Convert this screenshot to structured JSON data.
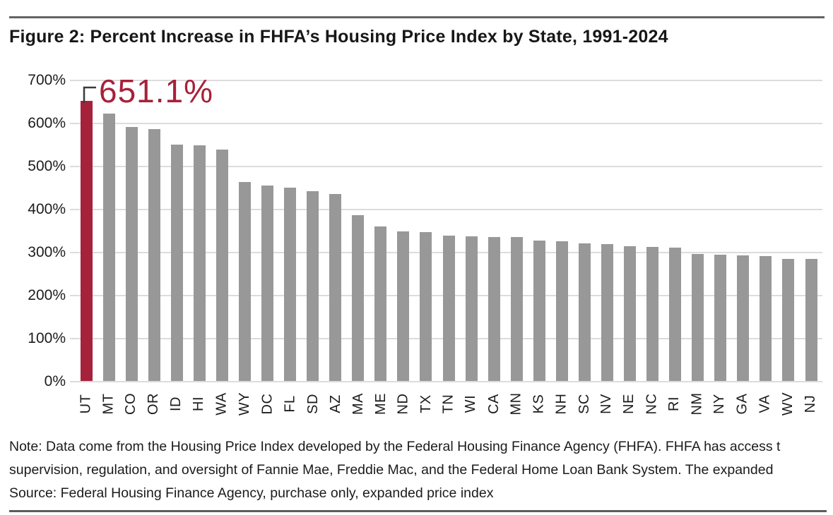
{
  "page": {
    "title": "Figure 2: Percent Increase in FHFA’s Housing Price Index by State, 1991-2024"
  },
  "chart_data": {
    "type": "bar",
    "title": "Figure 2: Percent Increase in FHFA’s Housing Price Index by State, 1991-2024",
    "categories": [
      "UT",
      "MT",
      "CO",
      "OR",
      "ID",
      "HI",
      "WA",
      "WY",
      "DC",
      "FL",
      "SD",
      "AZ",
      "MA",
      "ME",
      "ND",
      "TX",
      "TN",
      "WI",
      "CA",
      "MN",
      "KS",
      "NH",
      "SC",
      "NV",
      "NE",
      "NC",
      "RI",
      "NM",
      "NY",
      "GA",
      "VA",
      "WV",
      "NJ"
    ],
    "values": [
      651.1,
      621,
      590,
      585,
      550,
      547,
      537,
      462,
      454,
      449,
      441,
      434,
      385,
      359,
      347,
      346,
      338,
      336,
      335,
      334,
      327,
      325,
      320,
      318,
      314,
      312,
      310,
      295,
      294,
      292,
      290,
      284,
      283
    ],
    "xlabel": "",
    "ylabel": "",
    "ylim": [
      0,
      700
    ],
    "yticks": [
      "700%",
      "600%",
      "500%",
      "400%",
      "300%",
      "200%",
      "100%",
      "0%"
    ],
    "grid": true,
    "gridline_color": "#DCDCDC",
    "bar_color": "#989898",
    "highlight": {
      "category": "UT",
      "value_label": "651.1%",
      "color": "#A6213A"
    },
    "legend": "none"
  },
  "notes": {
    "line1": "Note: Data come from the Housing Price Index developed by the Federal Housing Finance Agency (FHFA). FHFA has access t",
    "line2": "supervision, regulation, and oversight of Fannie Mae, Freddie Mac, and the Federal Home Loan Bank System. The expanded",
    "line3": "Source: Federal Housing Finance Agency, purchase only, expanded price index"
  }
}
